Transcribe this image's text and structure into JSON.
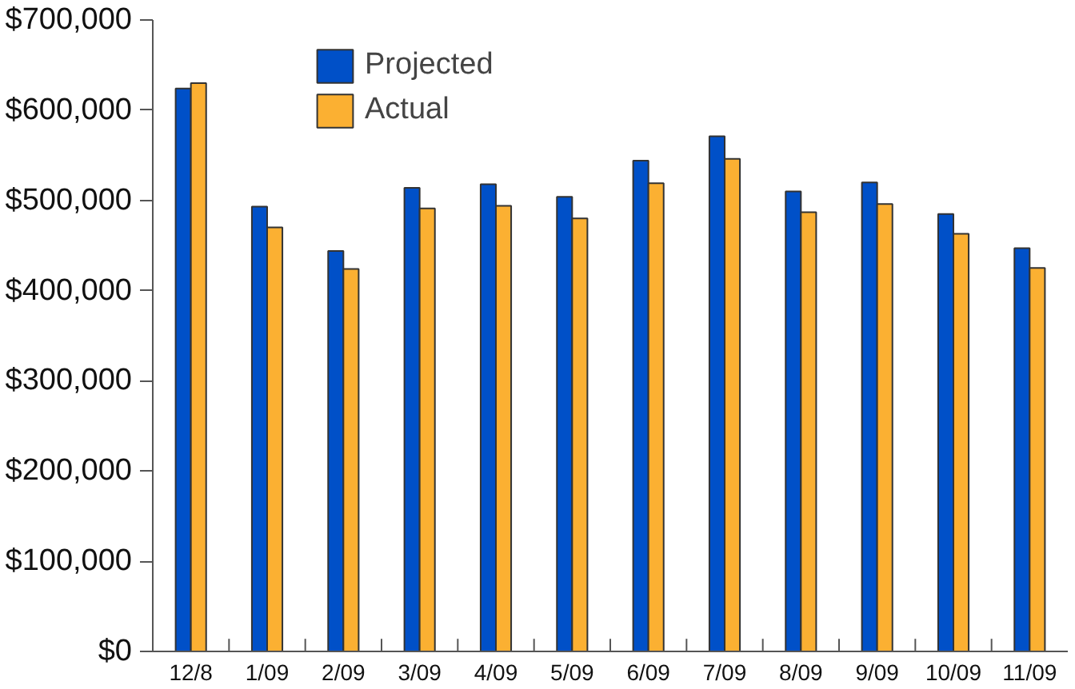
{
  "chart_data": {
    "type": "bar",
    "categories": [
      "12/8",
      "1/09",
      "2/09",
      "3/09",
      "4/09",
      "5/09",
      "6/09",
      "7/09",
      "8/09",
      "9/09",
      "10/09",
      "11/09"
    ],
    "series": [
      {
        "name": "Projected",
        "color": "#0050c8",
        "values": [
          624000,
          493000,
          444000,
          514000,
          518000,
          504000,
          544000,
          571000,
          510000,
          520000,
          485000,
          447000
        ]
      },
      {
        "name": "Actual",
        "color": "#fbb032",
        "values": [
          630000,
          470000,
          424000,
          491000,
          494000,
          480000,
          519000,
          546000,
          487000,
          496000,
          463000,
          425000
        ]
      }
    ],
    "ylim": [
      0,
      700000
    ],
    "yticks": [
      {
        "value": 0,
        "label": "$0"
      },
      {
        "value": 100000,
        "label": "$100,000"
      },
      {
        "value": 200000,
        "label": "$200,000"
      },
      {
        "value": 300000,
        "label": "$300,000"
      },
      {
        "value": 400000,
        "label": "$400,000"
      },
      {
        "value": 500000,
        "label": "$500,000"
      },
      {
        "value": 600000,
        "label": "$600,000"
      },
      {
        "value": 700000,
        "label": "$700,000"
      }
    ],
    "grid": false,
    "legend": "top left"
  }
}
